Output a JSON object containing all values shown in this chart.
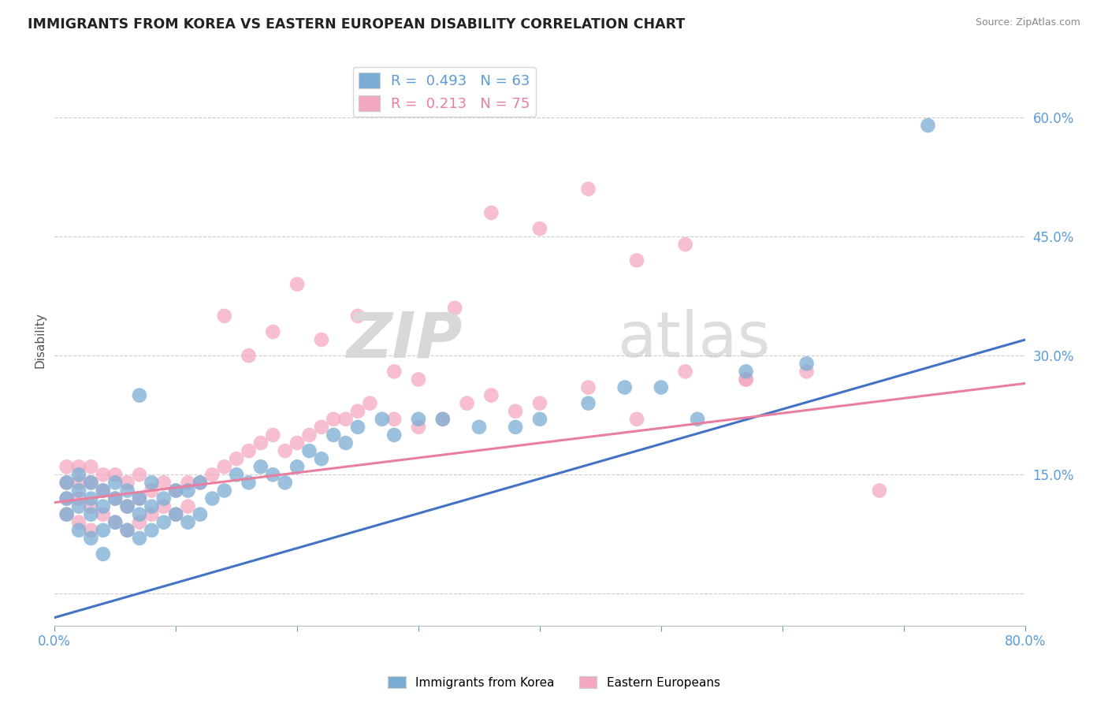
{
  "title": "IMMIGRANTS FROM KOREA VS EASTERN EUROPEAN DISABILITY CORRELATION CHART",
  "source": "Source: ZipAtlas.com",
  "ylabel": "Disability",
  "xlim": [
    0.0,
    0.8
  ],
  "ylim": [
    -0.04,
    0.68
  ],
  "yticks": [
    0.0,
    0.15,
    0.3,
    0.45,
    0.6
  ],
  "xticks": [
    0.0,
    0.1,
    0.2,
    0.3,
    0.4,
    0.5,
    0.6,
    0.7,
    0.8
  ],
  "grid_color": "#cccccc",
  "background_color": "#ffffff",
  "blue_color": "#7aadd4",
  "pink_color": "#f4a8c0",
  "blue_line_color": "#4472c4",
  "pink_line_color": "#e97fa0",
  "legend_r_blue": "0.493",
  "legend_n_blue": "63",
  "legend_r_pink": "0.213",
  "legend_n_pink": "75",
  "legend_label_blue": "Immigrants from Korea",
  "legend_label_pink": "Eastern Europeans",
  "blue_line_x0": 0.0,
  "blue_line_y0": -0.03,
  "blue_line_x1": 0.8,
  "blue_line_y1": 0.32,
  "pink_line_x0": 0.0,
  "pink_line_y0": 0.115,
  "pink_line_x1": 0.8,
  "pink_line_y1": 0.265,
  "blue_points_x": [
    0.01,
    0.01,
    0.01,
    0.02,
    0.02,
    0.02,
    0.02,
    0.03,
    0.03,
    0.03,
    0.03,
    0.04,
    0.04,
    0.04,
    0.04,
    0.05,
    0.05,
    0.05,
    0.06,
    0.06,
    0.06,
    0.07,
    0.07,
    0.07,
    0.08,
    0.08,
    0.08,
    0.09,
    0.09,
    0.1,
    0.1,
    0.11,
    0.11,
    0.12,
    0.12,
    0.13,
    0.14,
    0.15,
    0.16,
    0.17,
    0.18,
    0.19,
    0.2,
    0.21,
    0.22,
    0.23,
    0.24,
    0.25,
    0.27,
    0.28,
    0.3,
    0.32,
    0.35,
    0.38,
    0.4,
    0.44,
    0.47,
    0.5,
    0.53,
    0.57,
    0.62,
    0.72,
    0.07
  ],
  "blue_points_y": [
    0.1,
    0.12,
    0.14,
    0.08,
    0.11,
    0.13,
    0.15,
    0.07,
    0.1,
    0.12,
    0.14,
    0.08,
    0.11,
    0.13,
    0.05,
    0.09,
    0.12,
    0.14,
    0.08,
    0.11,
    0.13,
    0.07,
    0.1,
    0.12,
    0.08,
    0.11,
    0.14,
    0.09,
    0.12,
    0.1,
    0.13,
    0.09,
    0.13,
    0.1,
    0.14,
    0.12,
    0.13,
    0.15,
    0.14,
    0.16,
    0.15,
    0.14,
    0.16,
    0.18,
    0.17,
    0.2,
    0.19,
    0.21,
    0.22,
    0.2,
    0.22,
    0.22,
    0.21,
    0.21,
    0.22,
    0.24,
    0.26,
    0.26,
    0.22,
    0.28,
    0.29,
    0.59,
    0.25
  ],
  "pink_points_x": [
    0.01,
    0.01,
    0.01,
    0.01,
    0.02,
    0.02,
    0.02,
    0.02,
    0.03,
    0.03,
    0.03,
    0.03,
    0.04,
    0.04,
    0.04,
    0.05,
    0.05,
    0.05,
    0.06,
    0.06,
    0.06,
    0.07,
    0.07,
    0.07,
    0.08,
    0.08,
    0.09,
    0.09,
    0.1,
    0.1,
    0.11,
    0.11,
    0.12,
    0.13,
    0.14,
    0.15,
    0.16,
    0.17,
    0.18,
    0.19,
    0.2,
    0.21,
    0.22,
    0.23,
    0.24,
    0.25,
    0.26,
    0.28,
    0.3,
    0.32,
    0.34,
    0.36,
    0.38,
    0.4,
    0.44,
    0.48,
    0.52,
    0.57,
    0.62,
    0.68,
    0.14,
    0.16,
    0.18,
    0.2,
    0.22,
    0.25,
    0.28,
    0.3,
    0.33,
    0.36,
    0.4,
    0.44,
    0.48,
    0.52,
    0.57
  ],
  "pink_points_y": [
    0.1,
    0.12,
    0.14,
    0.16,
    0.09,
    0.12,
    0.14,
    0.16,
    0.08,
    0.11,
    0.14,
    0.16,
    0.1,
    0.13,
    0.15,
    0.09,
    0.12,
    0.15,
    0.08,
    0.11,
    0.14,
    0.09,
    0.12,
    0.15,
    0.1,
    0.13,
    0.11,
    0.14,
    0.1,
    0.13,
    0.11,
    0.14,
    0.14,
    0.15,
    0.16,
    0.17,
    0.18,
    0.19,
    0.2,
    0.18,
    0.19,
    0.2,
    0.21,
    0.22,
    0.22,
    0.23,
    0.24,
    0.22,
    0.21,
    0.22,
    0.24,
    0.25,
    0.23,
    0.24,
    0.26,
    0.22,
    0.28,
    0.27,
    0.28,
    0.13,
    0.35,
    0.3,
    0.33,
    0.39,
    0.32,
    0.35,
    0.28,
    0.27,
    0.36,
    0.48,
    0.46,
    0.51,
    0.42,
    0.44,
    0.27
  ]
}
